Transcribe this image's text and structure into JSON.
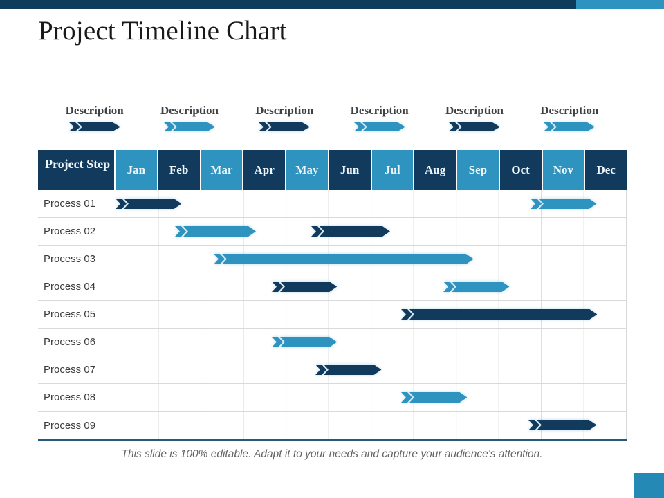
{
  "slide": {
    "title": "Project Timeline Chart",
    "footer": "This slide is 100% editable. Adapt it to your needs and capture your audience's attention.",
    "colors": {
      "dark": "#123a5c",
      "light": "#2e93be",
      "top_bar_dark": "#0e3a5c",
      "corner_square": "#2489b5",
      "table_bottom_border": "#265a7d",
      "grid_line": "#d9d9d9"
    }
  },
  "descriptions": [
    {
      "label": "Description",
      "arrow_color": "dark"
    },
    {
      "label": "Description",
      "arrow_color": "light"
    },
    {
      "label": "Description",
      "arrow_color": "dark"
    },
    {
      "label": "Description",
      "arrow_color": "light"
    },
    {
      "label": "Description",
      "arrow_color": "dark"
    },
    {
      "label": "Description",
      "arrow_color": "light"
    }
  ],
  "chart_data": {
    "type": "gantt",
    "title": "Project Timeline Chart",
    "step_header": "Project Step",
    "months": [
      "Jan",
      "Feb",
      "Mar",
      "Apr",
      "May",
      "Jun",
      "Jul",
      "Aug",
      "Sep",
      "Oct",
      "Nov",
      "Dec"
    ],
    "header_color_pattern": "step cell dark; months alternate light/dark starting with Jan=light",
    "x_axis": {
      "unit": "months",
      "range_start": 0,
      "range_end": 12
    },
    "rows": [
      {
        "label": "Process 01",
        "bars": [
          {
            "start_month": 0.0,
            "end_month": 1.55,
            "color": "dark"
          },
          {
            "start_month": 9.75,
            "end_month": 11.3,
            "color": "light"
          }
        ]
      },
      {
        "label": "Process 02",
        "bars": [
          {
            "start_month": 1.4,
            "end_month": 3.3,
            "color": "light"
          },
          {
            "start_month": 4.6,
            "end_month": 6.45,
            "color": "dark"
          }
        ]
      },
      {
        "label": "Process 03",
        "bars": [
          {
            "start_month": 2.3,
            "end_month": 8.4,
            "color": "light"
          }
        ]
      },
      {
        "label": "Process 04",
        "bars": [
          {
            "start_month": 3.67,
            "end_month": 5.2,
            "color": "dark"
          },
          {
            "start_month": 7.7,
            "end_month": 9.25,
            "color": "light"
          }
        ]
      },
      {
        "label": "Process 05",
        "bars": [
          {
            "start_month": 6.7,
            "end_month": 11.3,
            "color": "dark"
          }
        ]
      },
      {
        "label": "Process 06",
        "bars": [
          {
            "start_month": 3.67,
            "end_month": 5.2,
            "color": "light"
          }
        ]
      },
      {
        "label": "Process 07",
        "bars": [
          {
            "start_month": 4.7,
            "end_month": 6.25,
            "color": "dark"
          }
        ]
      },
      {
        "label": "Process 08",
        "bars": [
          {
            "start_month": 6.7,
            "end_month": 8.25,
            "color": "light"
          }
        ]
      },
      {
        "label": "Process 09",
        "bars": [
          {
            "start_month": 9.7,
            "end_month": 11.3,
            "color": "dark"
          }
        ]
      }
    ]
  }
}
